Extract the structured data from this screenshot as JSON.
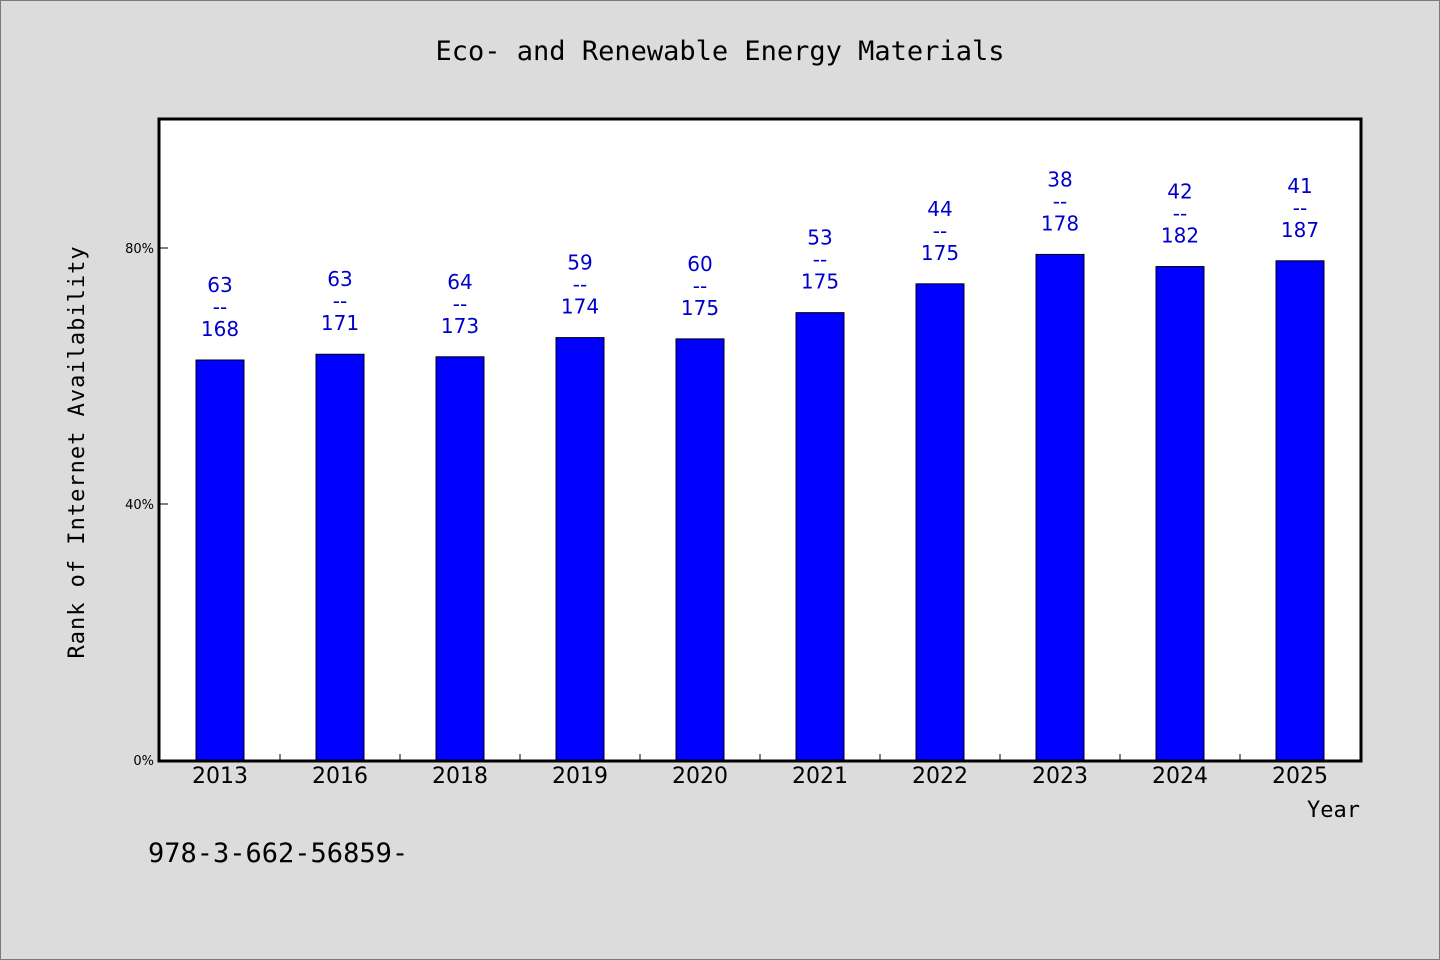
{
  "chart_data": {
    "type": "bar",
    "title": "Eco- and Renewable Energy Materials",
    "xlabel": "Year",
    "ylabel": "Rank of Internet Availability",
    "ylim": [
      0,
      100
    ],
    "yticks": [
      {
        "value": 0,
        "label": "0%"
      },
      {
        "value": 40,
        "label": "40%"
      },
      {
        "value": 80,
        "label": "80%"
      }
    ],
    "categories": [
      "2013",
      "2016",
      "2018",
      "2019",
      "2020",
      "2021",
      "2022",
      "2023",
      "2024",
      "2025"
    ],
    "values": [
      62.5,
      63.4,
      63.0,
      66.0,
      65.8,
      69.9,
      74.4,
      79.0,
      77.1,
      78.0
    ],
    "label_top": [
      "63",
      "63",
      "64",
      "59",
      "60",
      "53",
      "44",
      "38",
      "42",
      "41"
    ],
    "label_sep": "--",
    "label_bottom": [
      "168",
      "171",
      "173",
      "174",
      "175",
      "175",
      "175",
      "178",
      "182",
      "187"
    ],
    "grid": false,
    "legend": "none",
    "colors": {
      "bar": "#0000ff",
      "labels": "#0000cc",
      "background": "#dcdcdc",
      "plot": "#ffffff"
    }
  },
  "footer": {
    "isbn": "978-3-662-56859-"
  }
}
